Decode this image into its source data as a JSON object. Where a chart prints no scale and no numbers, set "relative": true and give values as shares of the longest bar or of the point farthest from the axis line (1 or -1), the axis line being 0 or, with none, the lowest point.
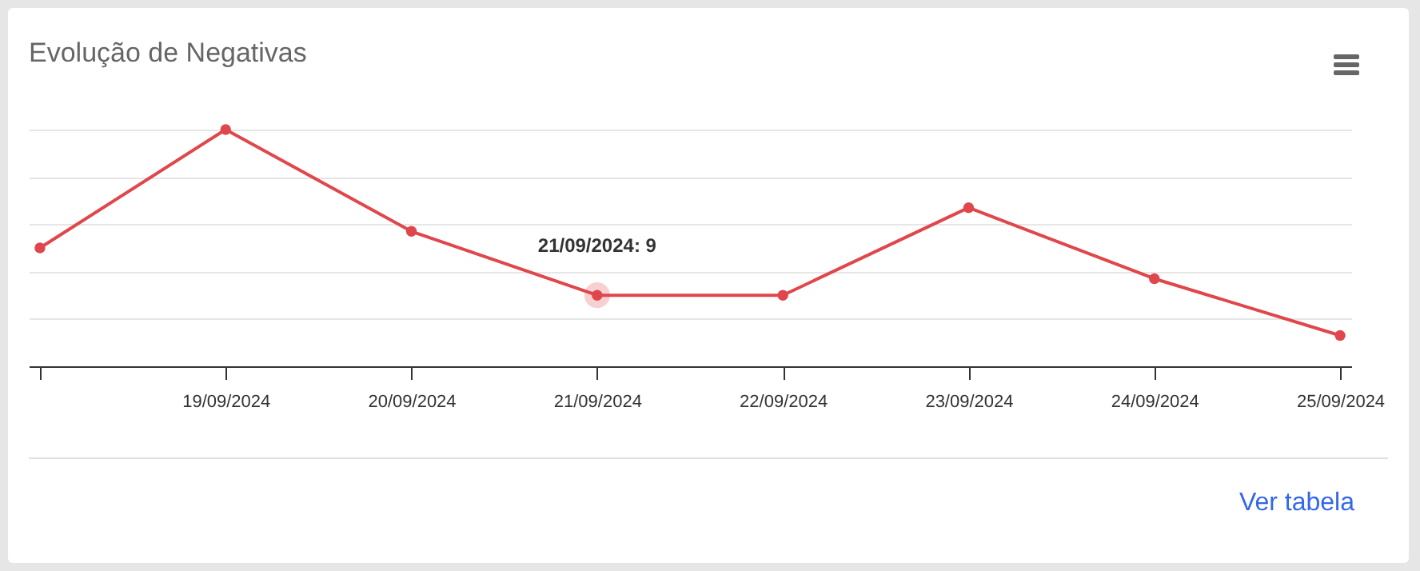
{
  "chart_data": {
    "type": "line",
    "title": "Evolução de Negativas",
    "relative": true,
    "categories": [
      null,
      "19/09/2024",
      "20/09/2024",
      "21/09/2024",
      "22/09/2024",
      "23/09/2024",
      "24/09/2024",
      "25/09/2024"
    ],
    "series": [
      {
        "color": "#e0474c",
        "values": [
          0.5,
          1,
          0.57,
          0.3,
          0.3,
          0.67,
          0.37,
          0.13
        ]
      }
    ],
    "annotations": [
      {
        "text": "21/09/2024: 9",
        "x": "21/09/2024",
        "y": 0.3
      },
      "Ver tabela"
    ],
    "grid": "y",
    "marker": "circle",
    "line_style": "solid"
  }
}
